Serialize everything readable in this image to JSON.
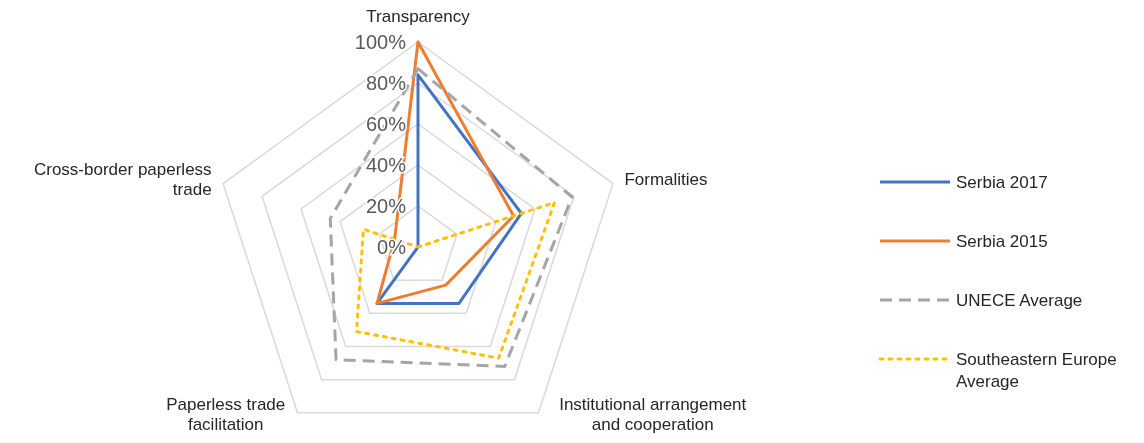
{
  "chart_data": {
    "type": "radar",
    "categories": [
      "Transparency",
      "Formalities",
      "Institutional arrangement and cooperation",
      "Paperless trade facilitation",
      "Cross-border paperless trade"
    ],
    "series": [
      {
        "name": "Serbia 2017",
        "color": "#4472c4",
        "line_style": "solid",
        "values": [
          84,
          53,
          34,
          34,
          0
        ]
      },
      {
        "name": "Serbia 2015",
        "color": "#ed7d31",
        "line_style": "solid",
        "values": [
          100,
          49,
          23,
          34,
          12
        ]
      },
      {
        "name": "UNECE Average",
        "color": "#a5a5a5",
        "line_style": "dashed",
        "values": [
          87,
          79,
          72,
          68,
          45
        ]
      },
      {
        "name": "Southeastern Europe Average",
        "color": "#ffc000",
        "line_style": "dotted",
        "values": [
          0,
          70,
          67,
          51,
          28
        ]
      }
    ],
    "ylim": [
      0,
      100
    ],
    "yticks": [
      {
        "value": 0,
        "label": "0%"
      },
      {
        "value": 20,
        "label": "20%"
      },
      {
        "value": 40,
        "label": "40%"
      },
      {
        "value": 60,
        "label": "60%"
      },
      {
        "value": 80,
        "label": "80%"
      },
      {
        "value": 100,
        "label": "100%"
      }
    ],
    "grid": true,
    "legend": "right",
    "marker": "none"
  }
}
